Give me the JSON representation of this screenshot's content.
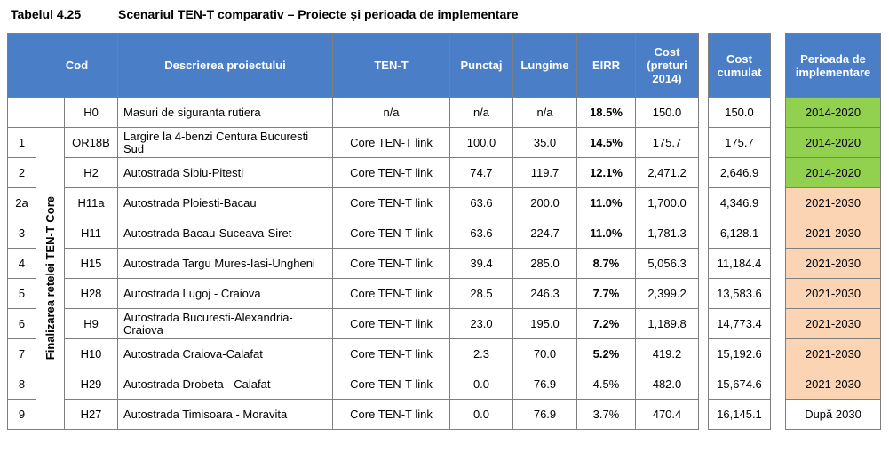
{
  "caption": {
    "label": "Tabelul 4.25",
    "title": "Scenariul TEN-T comparativ – Proiecte și perioada de implementare"
  },
  "headers": {
    "cod": "Cod",
    "descriere": "Descrierea proiectului",
    "tent": "TEN-T",
    "punctaj": "Punctaj",
    "lungime": "Lungime",
    "eirr": "EIRR",
    "cost": "Cost (preturi 2014)",
    "cost_cumulat": "Cost cumulat",
    "perioada": "Perioada de implementare"
  },
  "side_label": "Finalizarea retelei TEN-T Core",
  "colors": {
    "header": "#4a7ec7",
    "green": "#92d050",
    "peach": "#fbd4b4"
  },
  "rows": [
    {
      "nr": "",
      "cod": "H0",
      "descriere": "Masuri de siguranta rutiera",
      "tent": "n/a",
      "punctaj": "n/a",
      "lungime": "n/a",
      "eirr": "18.5%",
      "eirr_bold": true,
      "cost": "150.0",
      "cost_cumulat": "150.0",
      "perioada": "2014-2020",
      "perioada_color": "green"
    },
    {
      "nr": "1",
      "cod": "OR18B",
      "descriere": "Largire la 4-benzi Centura Bucuresti Sud",
      "tent": "Core TEN-T link",
      "punctaj": "100.0",
      "lungime": "35.0",
      "eirr": "14.5%",
      "eirr_bold": true,
      "cost": "175.7",
      "cost_cumulat": "175.7",
      "perioada": "2014-2020",
      "perioada_color": "green"
    },
    {
      "nr": "2",
      "cod": "H2",
      "descriere": "Autostrada Sibiu-Pitesti",
      "tent": "Core TEN-T link",
      "punctaj": "74.7",
      "lungime": "119.7",
      "eirr": "12.1%",
      "eirr_bold": true,
      "cost": "2,471.2",
      "cost_cumulat": "2,646.9",
      "perioada": "2014-2020",
      "perioada_color": "green"
    },
    {
      "nr": "2a",
      "cod": "H11a",
      "descriere": "Autostrada Ploiesti-Bacau",
      "tent": "Core TEN-T link",
      "punctaj": "63.6",
      "lungime": "200.0",
      "eirr": "11.0%",
      "eirr_bold": true,
      "cost": "1,700.0",
      "cost_cumulat": "4,346.9",
      "perioada": "2021-2030",
      "perioada_color": "peach"
    },
    {
      "nr": "3",
      "cod": "H11",
      "descriere": "Autostrada Bacau-Suceava-Siret",
      "tent": "Core TEN-T link",
      "punctaj": "63.6",
      "lungime": "224.7",
      "eirr": "11.0%",
      "eirr_bold": true,
      "cost": "1,781.3",
      "cost_cumulat": "6,128.1",
      "perioada": "2021-2030",
      "perioada_color": "peach"
    },
    {
      "nr": "4",
      "cod": "H15",
      "descriere": "Autostrada Targu Mures-Iasi-Ungheni",
      "tent": "Core TEN-T link",
      "punctaj": "39.4",
      "lungime": "285.0",
      "eirr": "8.7%",
      "eirr_bold": true,
      "cost": "5,056.3",
      "cost_cumulat": "11,184.4",
      "perioada": "2021-2030",
      "perioada_color": "peach"
    },
    {
      "nr": "5",
      "cod": "H28",
      "descriere": "Autostrada Lugoj - Craiova",
      "tent": "Core TEN-T link",
      "punctaj": "28.5",
      "lungime": "246.3",
      "eirr": "7.7%",
      "eirr_bold": true,
      "cost": "2,399.2",
      "cost_cumulat": "13,583.6",
      "perioada": "2021-2030",
      "perioada_color": "peach"
    },
    {
      "nr": "6",
      "cod": "H9",
      "descriere": "Autostrada Bucuresti-Alexandria-Craiova",
      "tent": "Core TEN-T link",
      "punctaj": "23.0",
      "lungime": "195.0",
      "eirr": "7.2%",
      "eirr_bold": true,
      "cost": "1,189.8",
      "cost_cumulat": "14,773.4",
      "perioada": "2021-2030",
      "perioada_color": "peach"
    },
    {
      "nr": "7",
      "cod": "H10",
      "descriere": "Autostrada Craiova-Calafat",
      "tent": "Core TEN-T link",
      "punctaj": "2.3",
      "lungime": "70.0",
      "eirr": "5.2%",
      "eirr_bold": true,
      "cost": "419.2",
      "cost_cumulat": "15,192.6",
      "perioada": "2021-2030",
      "perioada_color": "peach"
    },
    {
      "nr": "8",
      "cod": "H29",
      "descriere": "Autostrada Drobeta - Calafat",
      "tent": "Core TEN-T link",
      "punctaj": "0.0",
      "lungime": "76.9",
      "eirr": "4.5%",
      "eirr_bold": false,
      "cost": "482.0",
      "cost_cumulat": "15,674.6",
      "perioada": "2021-2030",
      "perioada_color": "peach"
    },
    {
      "nr": "9",
      "cod": "H27",
      "descriere": "Autostrada Timisoara - Moravita",
      "tent": "Core TEN-T link",
      "punctaj": "0.0",
      "lungime": "76.9",
      "eirr": "3.7%",
      "eirr_bold": false,
      "cost": "470.4",
      "cost_cumulat": "16,145.1",
      "perioada": "După 2030",
      "perioada_color": "white"
    }
  ]
}
